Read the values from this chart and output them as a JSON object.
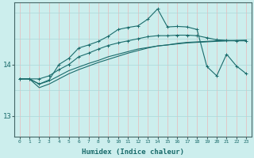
{
  "xlabel": "Humidex (Indice chaleur)",
  "bg_color": "#cceeed",
  "grid_h_color": "#aad8d8",
  "grid_v_color": "#e8b8b8",
  "line_color": "#1a6b6b",
  "xlim": [
    -0.5,
    23.5
  ],
  "ylim": [
    12.6,
    15.2
  ],
  "yticks": [
    13,
    14
  ],
  "xticks": [
    0,
    1,
    2,
    3,
    4,
    5,
    6,
    7,
    8,
    9,
    10,
    11,
    12,
    13,
    14,
    15,
    16,
    17,
    18,
    19,
    20,
    21,
    22,
    23
  ],
  "s1_y": [
    13.72,
    13.72,
    13.62,
    13.68,
    13.78,
    13.88,
    13.95,
    14.02,
    14.08,
    14.15,
    14.2,
    14.25,
    14.3,
    14.33,
    14.36,
    14.38,
    14.4,
    14.42,
    14.43,
    14.44,
    14.45,
    14.46,
    14.46,
    14.47
  ],
  "s2_y": [
    13.72,
    13.72,
    13.55,
    13.62,
    13.72,
    13.82,
    13.9,
    13.97,
    14.04,
    14.1,
    14.16,
    14.22,
    14.27,
    14.32,
    14.36,
    14.38,
    14.41,
    14.43,
    14.44,
    14.45,
    14.46,
    14.46,
    14.47,
    14.47
  ],
  "s3_y": [
    13.72,
    13.72,
    13.72,
    13.78,
    13.9,
    14.0,
    14.15,
    14.22,
    14.3,
    14.37,
    14.42,
    14.46,
    14.5,
    14.54,
    14.56,
    14.56,
    14.57,
    14.57,
    14.56,
    14.52,
    14.48,
    14.47,
    14.46,
    14.46
  ],
  "s4_y": [
    13.72,
    13.72,
    13.62,
    13.7,
    14.0,
    14.12,
    14.32,
    14.38,
    14.45,
    14.55,
    14.68,
    14.72,
    14.75,
    14.88,
    15.08,
    14.73,
    14.74,
    14.73,
    14.68,
    13.96,
    13.78,
    14.2,
    13.97,
    13.82
  ]
}
